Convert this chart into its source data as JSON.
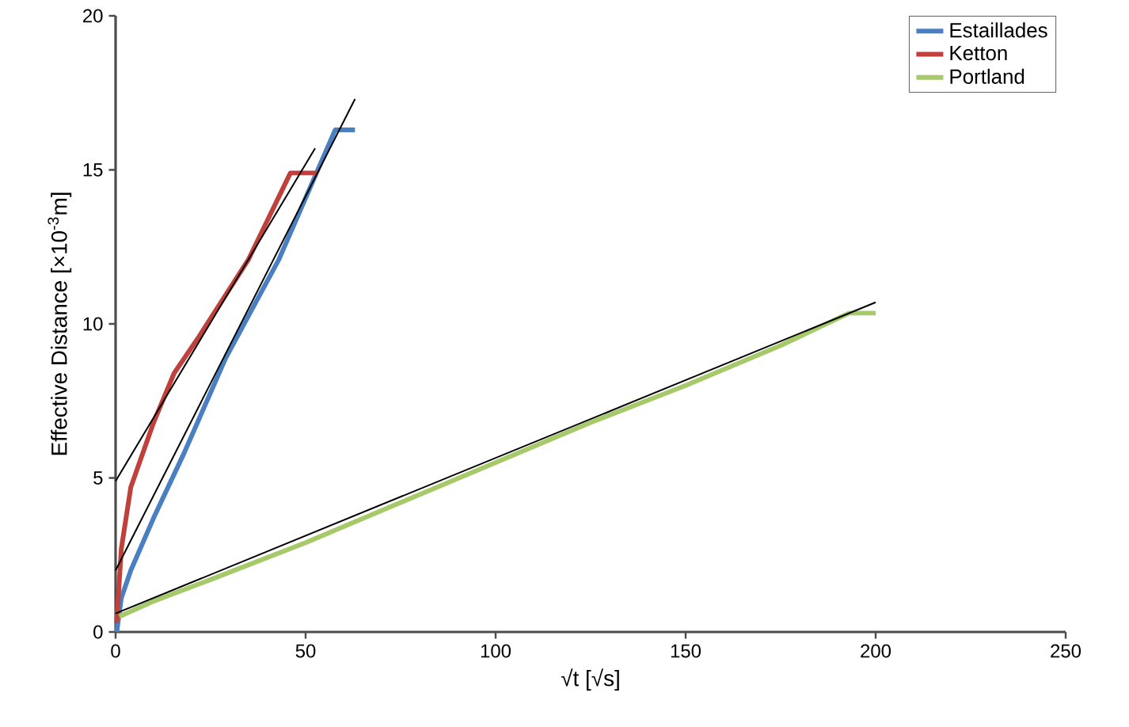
{
  "chart_data": {
    "type": "line",
    "xlabel": "√t [√s]",
    "ylabel": "Effective Distance [×10$^{-3}$m]",
    "xlim": [
      0,
      250
    ],
    "xticks": [
      0,
      50,
      100,
      150,
      200,
      250
    ],
    "ylim": [
      0,
      20
    ],
    "yticks": [
      0,
      5,
      10,
      15,
      20
    ],
    "legend": "top right",
    "grid": false,
    "marker": "none",
    "line_style": "solid",
    "series": [
      {
        "name": "Estaillades",
        "color": "#4a7fc1",
        "x": [
          0.3,
          1.5,
          4,
          10,
          18,
          29,
          43,
          57.8,
          63
        ],
        "values": [
          0,
          1.1,
          2.0,
          3.7,
          5.8,
          8.9,
          12.1,
          16.3,
          16.3
        ]
      },
      {
        "name": "Ketton",
        "color": "#c0413b",
        "x": [
          0.3,
          0.8,
          1.5,
          4,
          10,
          15.4,
          22,
          35,
          46,
          53
        ],
        "values": [
          0.3,
          1.3,
          2.7,
          4.7,
          6.8,
          8.4,
          9.6,
          12.1,
          14.9,
          14.9
        ]
      },
      {
        "name": "Portland",
        "color": "#a6c96a",
        "x": [
          1,
          10,
          25,
          50,
          75,
          100,
          125,
          150,
          175,
          193,
          200
        ],
        "values": [
          0.5,
          1.0,
          1.7,
          2.9,
          4.2,
          5.5,
          6.8,
          8.0,
          9.3,
          10.35,
          10.35
        ]
      },
      {
        "color": "#000000",
        "x": [
          0,
          52.5
        ],
        "values": [
          4.9,
          15.7
        ]
      },
      {
        "color": "#000000",
        "x": [
          0,
          63
        ],
        "values": [
          2.0,
          17.3
        ]
      },
      {
        "color": "#000000",
        "x": [
          0,
          200
        ],
        "values": [
          0.6,
          10.7
        ]
      }
    ]
  }
}
